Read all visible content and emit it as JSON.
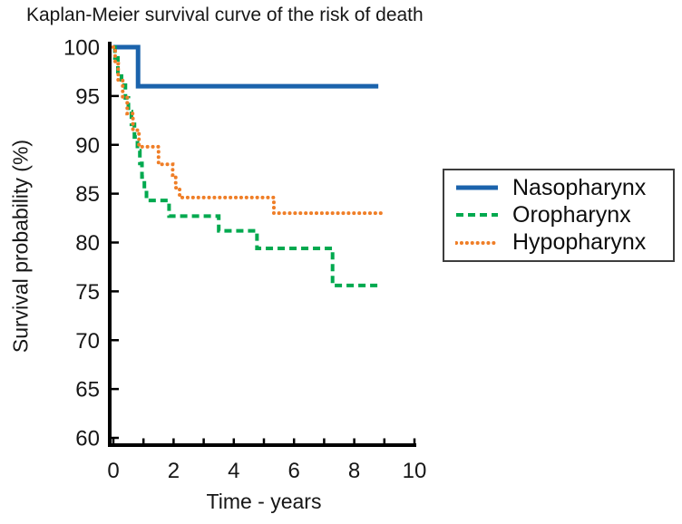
{
  "figure": {
    "title": "Kaplan-Meier survival curve of the risk of death"
  },
  "chart_data": {
    "type": "line",
    "subtype": "kaplan-meier-step",
    "title": "Kaplan-Meier survival curve of the risk of death",
    "xlabel": "Time - years",
    "ylabel": "Survival probability (%)",
    "xlim": [
      0,
      10
    ],
    "ylim": [
      60,
      100
    ],
    "xticks": [
      0,
      2,
      4,
      6,
      8,
      10
    ],
    "xminorticks": [
      0,
      1,
      2,
      3,
      4,
      5,
      6,
      7,
      8,
      9,
      10
    ],
    "yticks": [
      100,
      95,
      90,
      85,
      80,
      75,
      70,
      65,
      60
    ],
    "grid": false,
    "legend_position": "outside-right",
    "axis_color": "#000000",
    "text_color": "#161616",
    "series": [
      {
        "name": "Nasopharynx",
        "color": "#1b63ac",
        "line_style": "solid",
        "line_width": 5,
        "points": [
          [
            0,
            100
          ],
          [
            0.82,
            96
          ]
        ],
        "end_time": 8.8
      },
      {
        "name": "Oropharynx",
        "color": "#00a94f",
        "line_style": "dashed",
        "line_width": 4,
        "points": [
          [
            0,
            100
          ],
          [
            0.05,
            98.9
          ],
          [
            0.15,
            97.5
          ],
          [
            0.27,
            96.1
          ],
          [
            0.4,
            94.8
          ],
          [
            0.5,
            93.4
          ],
          [
            0.6,
            92.1
          ],
          [
            0.7,
            90.8
          ],
          [
            0.8,
            89.4
          ],
          [
            0.88,
            88.1
          ],
          [
            0.95,
            86.7
          ],
          [
            1.03,
            85.4
          ],
          [
            1.1,
            84.3
          ],
          [
            1.85,
            82.7
          ],
          [
            3.5,
            81.2
          ],
          [
            4.77,
            79.4
          ],
          [
            7.28,
            75.6
          ]
        ],
        "end_time": 8.9
      },
      {
        "name": "Hypopharynx",
        "color": "#ef7e27",
        "line_style": "dotted",
        "line_width": 4,
        "points": [
          [
            0,
            100
          ],
          [
            0.06,
            98.3
          ],
          [
            0.16,
            96.6
          ],
          [
            0.31,
            94.9
          ],
          [
            0.46,
            93.2
          ],
          [
            0.65,
            91.5
          ],
          [
            0.85,
            89.8
          ],
          [
            1.5,
            88.0
          ],
          [
            1.97,
            86.9
          ],
          [
            2.07,
            85.6
          ],
          [
            2.2,
            84.6
          ],
          [
            5.33,
            83.0
          ]
        ],
        "end_time": 8.9
      }
    ]
  }
}
